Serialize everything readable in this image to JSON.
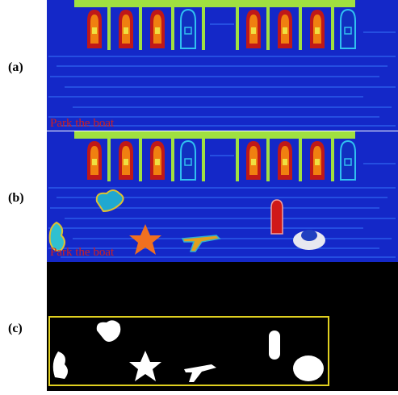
{
  "panels": [
    {
      "label": "(a)",
      "caption": "Park the boat"
    },
    {
      "label": "(b)",
      "caption": "Park the boat"
    },
    {
      "label": "(c)"
    }
  ]
}
